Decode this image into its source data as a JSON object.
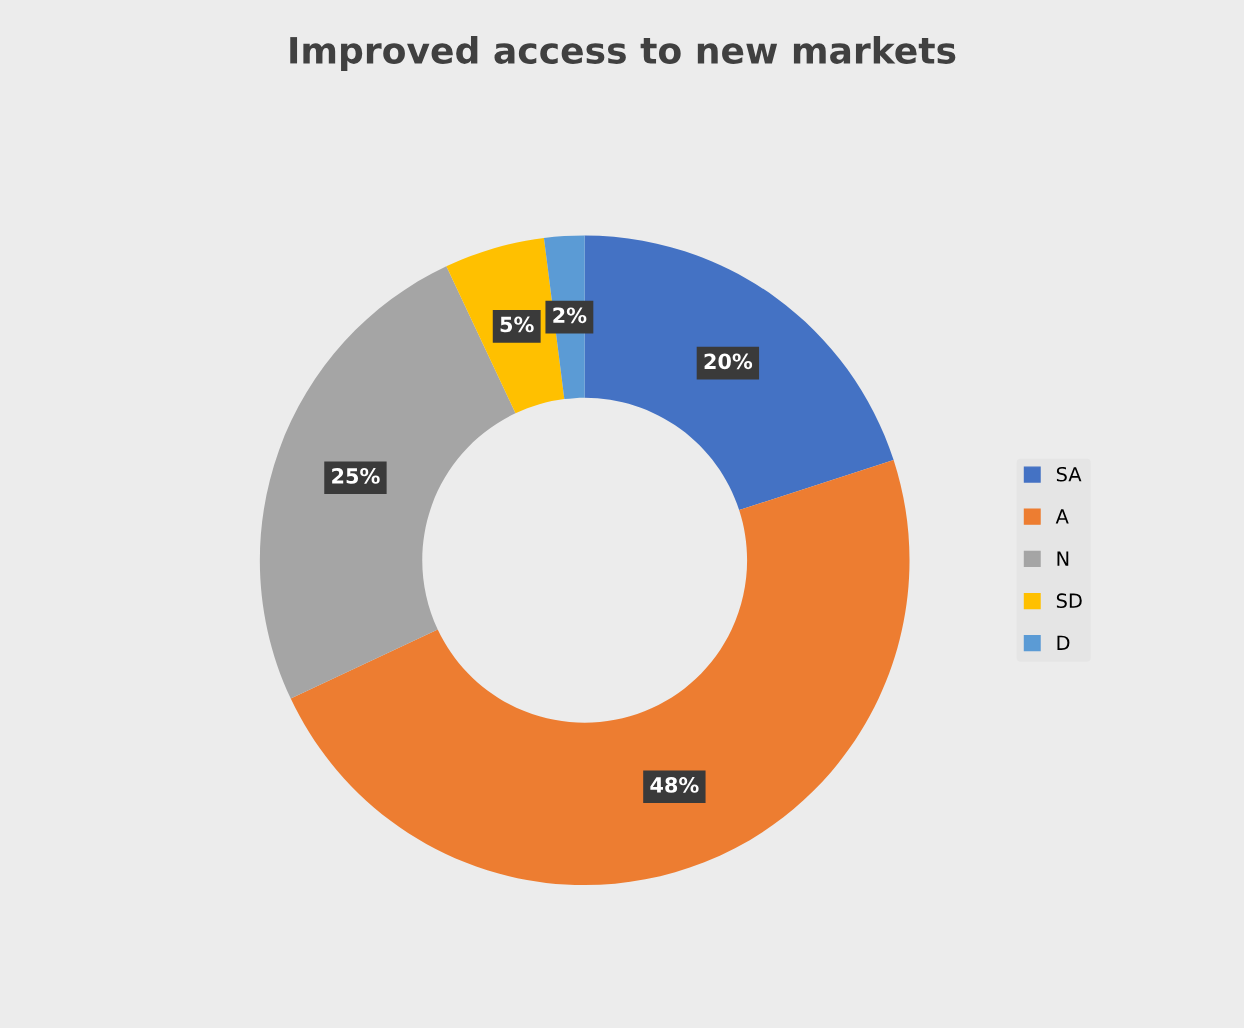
{
  "chart_data": {
    "type": "donut",
    "title": "Improved access to new markets",
    "categories": [
      "SA",
      "A",
      "N",
      "SD",
      "D"
    ],
    "values": [
      20,
      48,
      25,
      5,
      2
    ],
    "colors": [
      "#4472c4",
      "#ed7d31",
      "#a5a5a5",
      "#ffc000",
      "#5b9bd5"
    ],
    "value_labels": [
      "20%",
      "48%",
      "25%",
      "5%",
      "2%"
    ],
    "legend": "right"
  }
}
